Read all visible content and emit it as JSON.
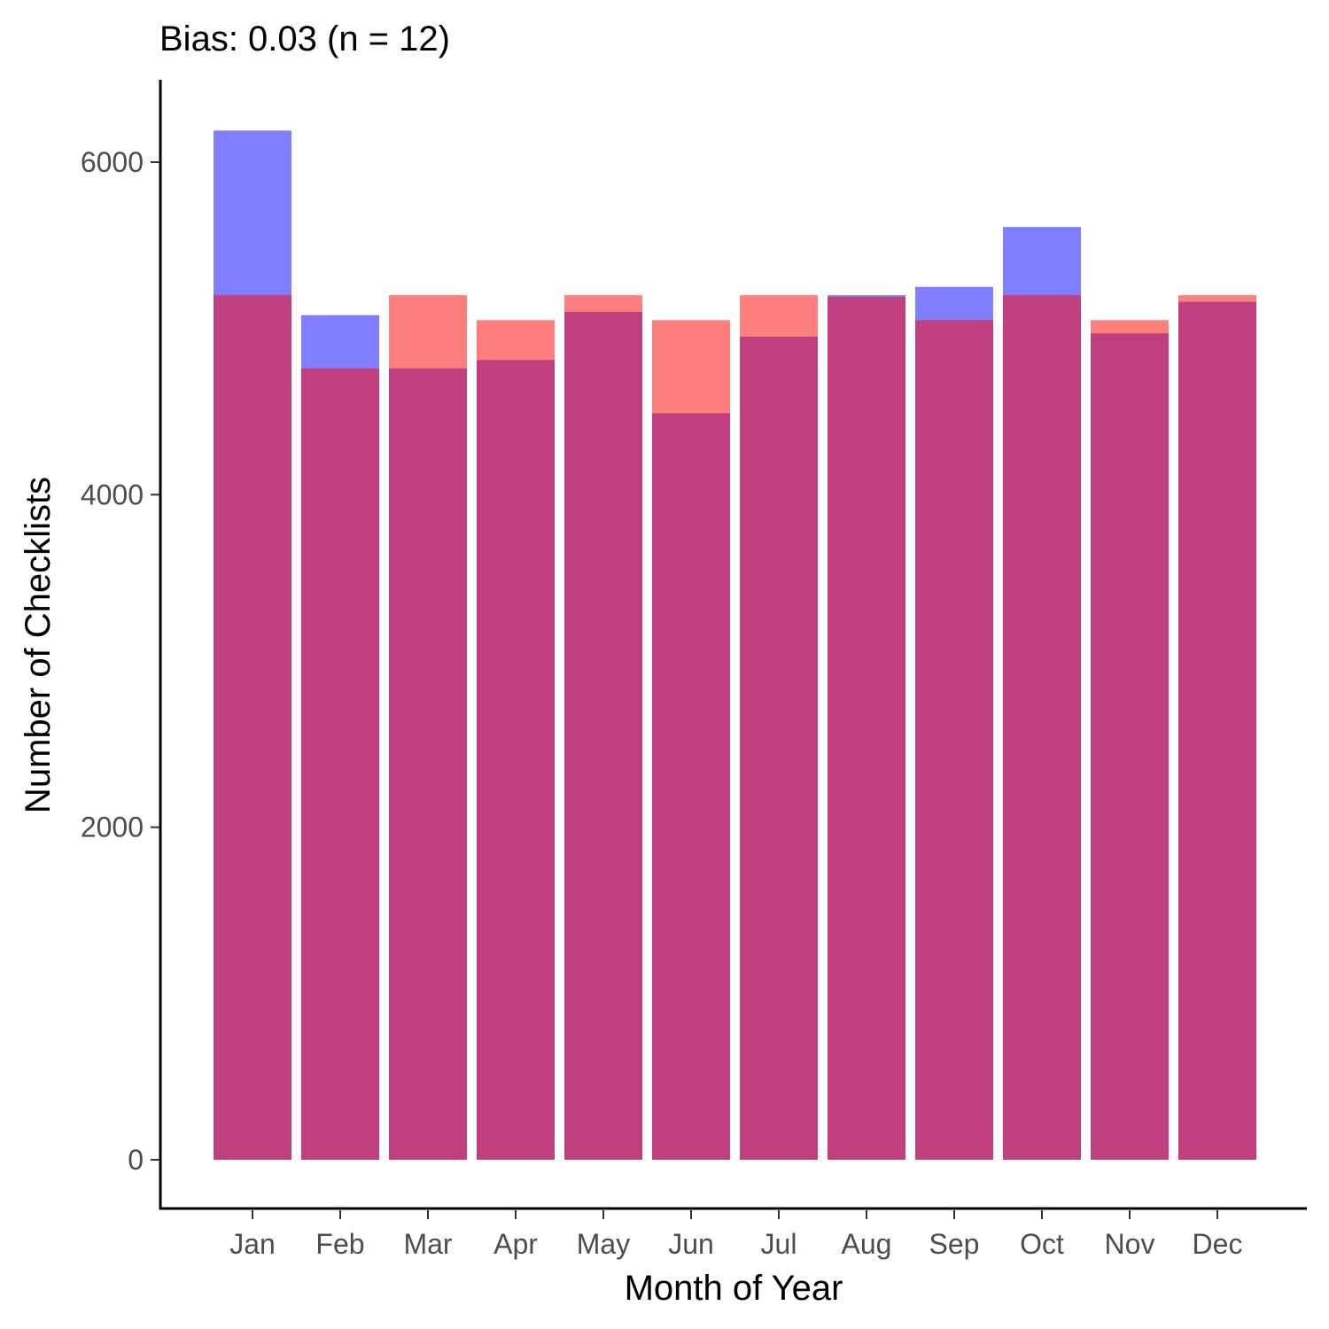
{
  "chart_data": {
    "type": "bar",
    "title": "Bias: 0.03 (n = 12)",
    "xlabel": "Month of Year",
    "ylabel": "Number of Checklists",
    "categories": [
      "Jan",
      "Feb",
      "Mar",
      "Apr",
      "May",
      "Jun",
      "Jul",
      "Aug",
      "Sep",
      "Oct",
      "Nov",
      "Dec"
    ],
    "series": [
      {
        "color": "#0000ff",
        "opacity": 0.5,
        "values": [
          6190,
          5080,
          4760,
          4810,
          5100,
          4490,
          4950,
          5200,
          5250,
          5610,
          4970,
          5160
        ]
      },
      {
        "color": "#ff0000",
        "opacity": 0.5,
        "values": [
          5200,
          4760,
          5200,
          5050,
          5200,
          5050,
          5200,
          5190,
          5050,
          5200,
          5050,
          5200
        ]
      }
    ],
    "yticks": [
      0,
      2000,
      4000,
      6000
    ],
    "ylim": [
      -300,
      6500
    ],
    "grid": false,
    "legend": "none"
  }
}
